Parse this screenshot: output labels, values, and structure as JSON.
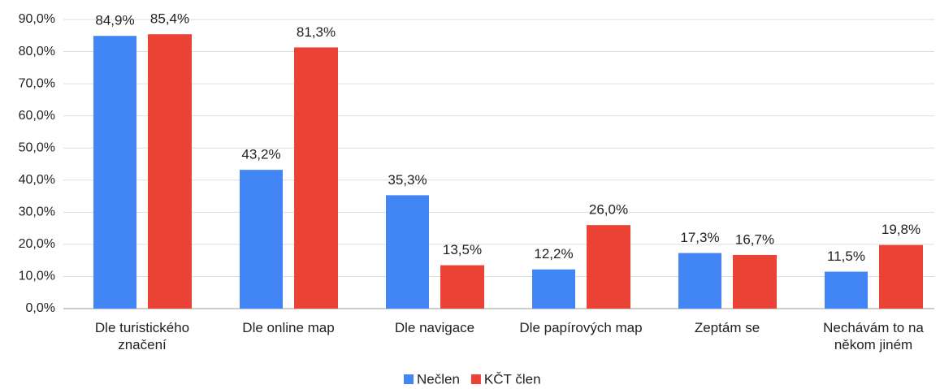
{
  "chart_data": {
    "type": "bar",
    "categories": [
      "Dle turistického značení",
      "Dle online map",
      "Dle navigace",
      "Dle papírových map",
      "Zeptám se",
      "Nechávám to na někom jiném"
    ],
    "series": [
      {
        "name": "Nečlen",
        "color": "#4285f4",
        "values": [
          84.9,
          43.2,
          35.3,
          12.2,
          17.3,
          11.5
        ],
        "value_labels": [
          "84,9%",
          "43,2%",
          "35,3%",
          "12,2%",
          "17,3%",
          "11,5%"
        ]
      },
      {
        "name": "KČT člen",
        "color": "#ea4335",
        "values": [
          85.4,
          81.3,
          13.5,
          26.0,
          16.7,
          19.8
        ],
        "value_labels": [
          "85,4%",
          "81,3%",
          "13,5%",
          "26,0%",
          "16,7%",
          "19,8%"
        ]
      }
    ],
    "ylim": [
      0,
      90
    ],
    "yticks": [
      {
        "value": 0,
        "label": "0,0%"
      },
      {
        "value": 10,
        "label": "10,0%"
      },
      {
        "value": 20,
        "label": "20,0%"
      },
      {
        "value": 30,
        "label": "30,0%"
      },
      {
        "value": 40,
        "label": "40,0%"
      },
      {
        "value": 50,
        "label": "50,0%"
      },
      {
        "value": 60,
        "label": "60,0%"
      },
      {
        "value": 70,
        "label": "70,0%"
      },
      {
        "value": 80,
        "label": "80,0%"
      },
      {
        "value": 90,
        "label": "90,0%"
      }
    ],
    "grid": true,
    "legend": "bottom"
  }
}
